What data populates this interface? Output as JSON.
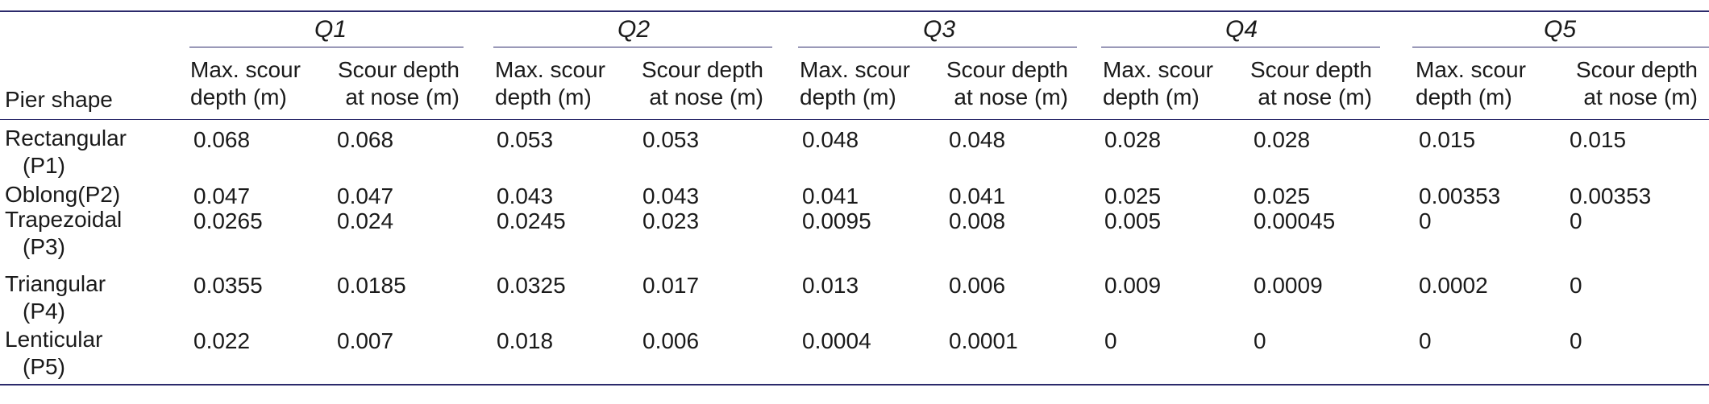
{
  "table": {
    "row_header_label": "Pier shape",
    "groups": [
      {
        "label": "Q1"
      },
      {
        "label": "Q2"
      },
      {
        "label": "Q3"
      },
      {
        "label": "Q4"
      },
      {
        "label": "Q5"
      }
    ],
    "subheaders": {
      "max_l1": "Max. scour",
      "max_l2": "depth (m)",
      "nose_l1": "Scour depth",
      "nose_l2": "at nose (m)"
    },
    "rows": [
      {
        "shape": "Rectangular",
        "shape_sub": "(P1)",
        "values": [
          "0.068",
          "0.068",
          "0.053",
          "0.053",
          "0.048",
          "0.048",
          "0.028",
          "0.028",
          "0.015",
          "0.015"
        ]
      },
      {
        "shape": "Oblong(P2)",
        "shape_sub": "",
        "values": [
          "0.047",
          "0.047",
          "0.043",
          "0.043",
          "0.041",
          "0.041",
          "0.025",
          "0.025",
          "0.00353",
          "0.00353"
        ]
      },
      {
        "shape": "Trapezoidal",
        "shape_sub": "(P3)",
        "values": [
          "0.0265",
          "0.024",
          "0.0245",
          "0.023",
          "0.0095",
          "0.008",
          "0.005",
          "0.00045",
          "0",
          "0"
        ]
      },
      {
        "shape": "Triangular",
        "shape_sub": "(P4)",
        "values": [
          "0.0355",
          "0.0185",
          "0.0325",
          "0.017",
          "0.013",
          "0.006",
          "0.009",
          "0.0009",
          "0.0002",
          "0"
        ]
      },
      {
        "shape": "Lenticular",
        "shape_sub": "(P5)",
        "values": [
          "0.022",
          "0.007",
          "0.018",
          "0.006",
          "0.0004",
          "0.0001",
          "0",
          "0",
          "0",
          "0"
        ]
      }
    ]
  }
}
